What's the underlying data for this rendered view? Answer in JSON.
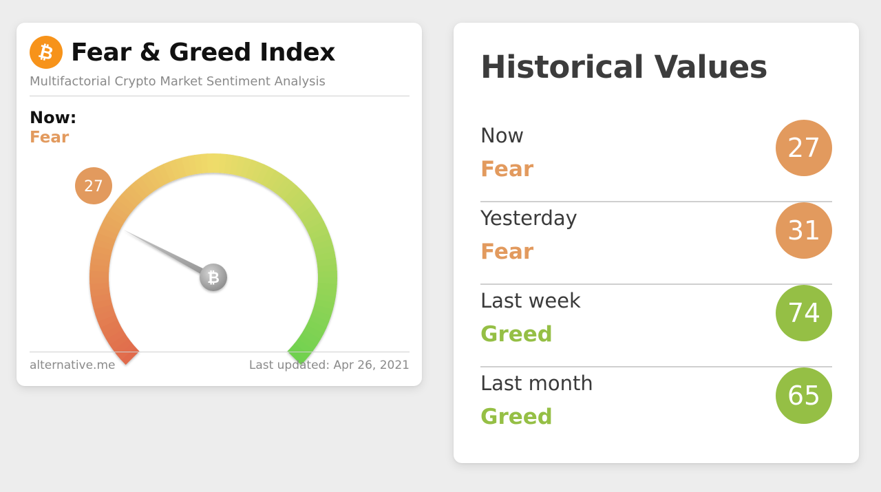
{
  "widget": {
    "logo_icon": "bitcoin-icon",
    "logo_glyph": "₿",
    "title": "Fear & Greed Index",
    "subtitle": "Multifactorial Crypto Market Sentiment Analysis",
    "now_label": "Now:",
    "now_state": "Fear",
    "value": "27",
    "value_number": 27,
    "scale_max": 100,
    "source": "alternative.me",
    "last_updated": "Last updated: Apr 26, 2021"
  },
  "history": {
    "title": "Historical Values",
    "rows": [
      {
        "period": "Now",
        "state": "Fear",
        "value": "27",
        "color": "#e29a5e"
      },
      {
        "period": "Yesterday",
        "state": "Fear",
        "value": "31",
        "color": "#e29a5e"
      },
      {
        "period": "Last week",
        "state": "Greed",
        "value": "74",
        "color": "#95bf45"
      },
      {
        "period": "Last month",
        "state": "Greed",
        "value": "65",
        "color": "#95bf45"
      }
    ]
  },
  "colors": {
    "fear": "#e29a5e",
    "greed": "#95bf45",
    "bitcoin_orange": "#f7931a",
    "gauge_low": "#e06a4c",
    "gauge_mid": "#efdc6a",
    "gauge_high": "#6fd14f"
  }
}
